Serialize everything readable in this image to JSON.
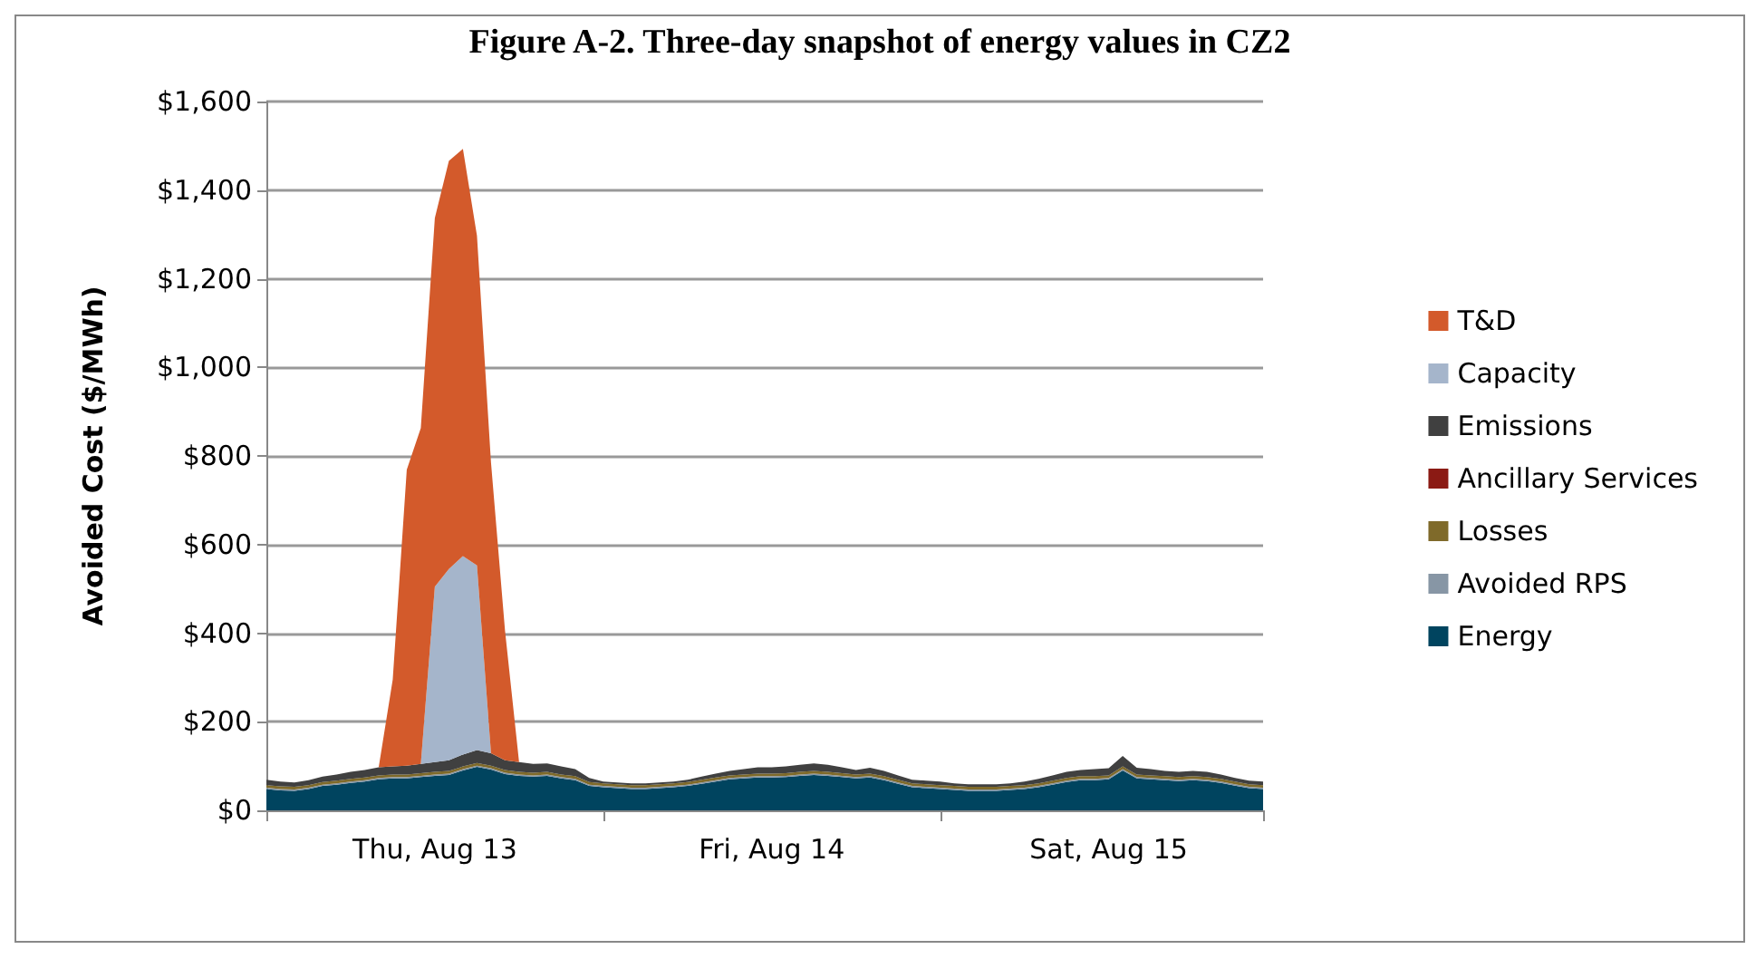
{
  "chart_data": {
    "type": "area",
    "stacked": true,
    "title": "Figure A-2. Three-day snapshot of energy values in CZ2",
    "ylabel": "Avoided Cost ($/MWh)",
    "categories": [
      null,
      null,
      null,
      null,
      null,
      null,
      null,
      null,
      null,
      null,
      null,
      null,
      "Thu, Aug 13",
      null,
      null,
      null,
      null,
      null,
      null,
      null,
      null,
      null,
      null,
      null,
      null,
      null,
      null,
      null,
      null,
      null,
      null,
      null,
      null,
      null,
      null,
      null,
      "Fri, Aug 14",
      null,
      null,
      null,
      null,
      null,
      null,
      null,
      null,
      null,
      null,
      null,
      null,
      null,
      null,
      null,
      null,
      null,
      null,
      null,
      null,
      null,
      null,
      null,
      "Sat, Aug 15",
      null,
      null,
      null,
      null,
      null,
      null,
      null,
      null,
      null,
      null,
      null
    ],
    "ylim": [
      0,
      1600
    ],
    "yticks": [
      {
        "value": 0,
        "label": "$0"
      },
      {
        "value": 200,
        "label": "$200"
      },
      {
        "value": 400,
        "label": "$400"
      },
      {
        "value": 600,
        "label": "$600"
      },
      {
        "value": 800,
        "label": "$800"
      },
      {
        "value": 1000,
        "label": "$1,000"
      },
      {
        "value": 1200,
        "label": "$1,200"
      },
      {
        "value": 1400,
        "label": "$1,400"
      },
      {
        "value": 1600,
        "label": "$1,600"
      }
    ],
    "grid": "y",
    "legend": "right",
    "series": [
      {
        "name": "Energy",
        "color": "#00445f",
        "values": [
          48,
          45,
          44,
          48,
          55,
          58,
          62,
          65,
          70,
          72,
          72,
          75,
          78,
          80,
          90,
          98,
          92,
          82,
          78,
          76,
          78,
          72,
          68,
          55,
          52,
          50,
          48,
          48,
          50,
          52,
          55,
          60,
          65,
          70,
          72,
          74,
          74,
          75,
          78,
          80,
          78,
          75,
          72,
          74,
          68,
          60,
          52,
          50,
          48,
          46,
          44,
          44,
          44,
          46,
          48,
          52,
          58,
          64,
          68,
          68,
          70,
          90,
          72,
          70,
          68,
          66,
          68,
          66,
          62,
          56,
          50,
          48
        ]
      },
      {
        "name": "Avoided RPS",
        "color": "#8796a5",
        "values": [
          3,
          3,
          3,
          3,
          3,
          3,
          3,
          3,
          3,
          3,
          3,
          3,
          3,
          3,
          3,
          3,
          3,
          3,
          3,
          3,
          3,
          3,
          3,
          3,
          3,
          3,
          3,
          3,
          3,
          3,
          3,
          3,
          3,
          3,
          3,
          3,
          3,
          3,
          3,
          3,
          3,
          3,
          3,
          3,
          3,
          3,
          3,
          3,
          3,
          3,
          3,
          3,
          3,
          3,
          3,
          3,
          3,
          3,
          3,
          3,
          3,
          3,
          3,
          3,
          3,
          3,
          3,
          3,
          3,
          3,
          3,
          3
        ]
      },
      {
        "name": "Losses",
        "color": "#7f6a2a",
        "values": [
          6,
          6,
          6,
          6,
          6,
          6,
          6,
          6,
          6,
          6,
          6,
          6,
          6,
          6,
          6,
          6,
          6,
          6,
          6,
          6,
          6,
          6,
          6,
          6,
          6,
          6,
          6,
          6,
          6,
          6,
          6,
          6,
          6,
          6,
          6,
          6,
          6,
          6,
          6,
          6,
          6,
          6,
          6,
          6,
          6,
          6,
          6,
          6,
          6,
          6,
          6,
          6,
          6,
          6,
          6,
          6,
          6,
          6,
          6,
          6,
          6,
          6,
          6,
          6,
          6,
          6,
          6,
          6,
          6,
          6,
          6,
          6
        ]
      },
      {
        "name": "Ancillary Services",
        "color": "#8b1a14",
        "values": [
          null,
          null,
          null,
          null,
          null,
          null,
          null,
          null,
          null,
          null,
          null,
          null,
          null,
          null,
          null,
          null,
          null,
          null,
          null,
          null,
          null,
          null,
          null,
          null,
          null,
          null,
          null,
          null,
          null,
          null,
          null,
          null,
          null,
          null,
          null,
          null,
          null,
          null,
          null,
          null,
          null,
          null,
          null,
          null,
          null,
          null,
          null,
          null,
          null,
          null,
          null,
          null,
          null,
          null,
          null,
          null,
          null,
          null,
          null,
          null,
          null,
          null,
          null,
          null,
          null,
          null,
          null,
          null,
          null,
          null,
          null,
          null
        ]
      },
      {
        "name": "Emissions",
        "color": "#404040",
        "values": [
          12,
          11,
          10,
          11,
          12,
          14,
          16,
          17,
          18,
          18,
          20,
          21,
          22,
          24,
          27,
          29,
          28,
          22,
          22,
          20,
          19,
          18,
          16,
          9,
          4,
          4,
          4,
          4,
          4,
          4,
          5,
          7,
          9,
          10,
          12,
          14,
          14,
          15,
          16,
          17,
          16,
          13,
          10,
          13,
          12,
          10,
          8,
          8,
          8,
          6,
          6,
          6,
          6,
          6,
          8,
          10,
          12,
          14,
          14,
          16,
          16,
          24,
          15,
          14,
          12,
          12,
          12,
          12,
          10,
          8,
          8,
          8
        ]
      },
      {
        "name": "Capacity",
        "color": "#a5b5cb",
        "values": [
          0,
          0,
          0,
          0,
          0,
          0,
          0,
          0,
          0,
          0,
          0,
          0,
          396,
          432,
          448,
          417,
          0,
          0,
          0,
          0,
          0,
          0,
          0,
          0,
          0,
          0,
          0,
          0,
          0,
          0,
          0,
          0,
          0,
          0,
          0,
          0,
          0,
          0,
          0,
          0,
          0,
          0,
          0,
          0,
          0,
          0,
          0,
          0,
          0,
          0,
          0,
          0,
          0,
          0,
          0,
          0,
          0,
          0,
          0,
          0,
          0,
          0,
          0,
          0,
          0,
          0,
          0,
          0,
          0,
          0,
          0,
          0
        ]
      },
      {
        "name": "T&D",
        "color": "#d35a2b",
        "values": [
          0,
          0,
          0,
          0,
          0,
          0,
          0,
          0,
          0,
          196,
          668,
          758,
          832,
          921,
          919,
          744,
          656,
          292,
          0,
          0,
          0,
          0,
          0,
          0,
          0,
          0,
          0,
          0,
          0,
          0,
          0,
          0,
          0,
          0,
          0,
          0,
          0,
          0,
          0,
          0,
          0,
          0,
          0,
          0,
          0,
          0,
          0,
          0,
          0,
          0,
          0,
          0,
          0,
          0,
          0,
          0,
          0,
          0,
          0,
          0,
          0,
          0,
          0,
          0,
          0,
          0,
          0,
          0,
          0,
          0,
          0,
          0
        ]
      }
    ]
  }
}
